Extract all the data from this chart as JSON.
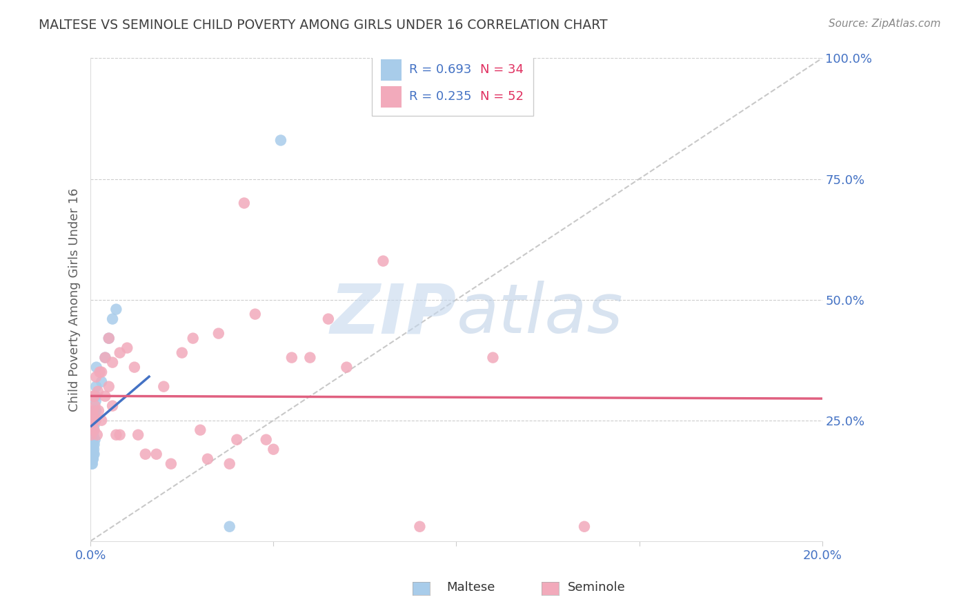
{
  "title": "MALTESE VS SEMINOLE CHILD POVERTY AMONG GIRLS UNDER 16 CORRELATION CHART",
  "source": "Source: ZipAtlas.com",
  "ylabel": "Child Poverty Among Girls Under 16",
  "xlim": [
    0.0,
    0.2
  ],
  "ylim": [
    0.0,
    1.0
  ],
  "maltese_R": 0.693,
  "maltese_N": 34,
  "seminole_R": 0.235,
  "seminole_N": 52,
  "maltese_color": "#A8CCEA",
  "seminole_color": "#F2AABB",
  "maltese_line_color": "#4472C4",
  "seminole_line_color": "#E06080",
  "watermark_zip": "ZIP",
  "watermark_atlas": "atlas",
  "watermark_color": "#C8D8F0",
  "title_color": "#404040",
  "axis_label_color": "#606060",
  "right_axis_color": "#4472C4",
  "grid_color": "#CCCCCC",
  "maltese_x": [
    0.0002,
    0.0003,
    0.0004,
    0.0005,
    0.0005,
    0.0006,
    0.0006,
    0.0006,
    0.0007,
    0.0007,
    0.0008,
    0.0008,
    0.0008,
    0.0009,
    0.0009,
    0.001,
    0.001,
    0.001,
    0.001,
    0.0012,
    0.0012,
    0.0013,
    0.0014,
    0.0014,
    0.0015,
    0.0015,
    0.0016,
    0.003,
    0.004,
    0.005,
    0.006,
    0.007,
    0.038,
    0.052
  ],
  "maltese_y": [
    0.18,
    0.16,
    0.2,
    0.16,
    0.18,
    0.17,
    0.19,
    0.21,
    0.17,
    0.2,
    0.18,
    0.22,
    0.24,
    0.19,
    0.23,
    0.18,
    0.2,
    0.24,
    0.26,
    0.21,
    0.25,
    0.27,
    0.29,
    0.3,
    0.27,
    0.32,
    0.36,
    0.33,
    0.38,
    0.42,
    0.46,
    0.48,
    0.03,
    0.83
  ],
  "seminole_x": [
    0.0002,
    0.0003,
    0.0005,
    0.0006,
    0.0007,
    0.0008,
    0.001,
    0.001,
    0.0012,
    0.0014,
    0.0015,
    0.0018,
    0.002,
    0.0022,
    0.0025,
    0.003,
    0.003,
    0.004,
    0.004,
    0.005,
    0.005,
    0.006,
    0.006,
    0.007,
    0.008,
    0.008,
    0.01,
    0.012,
    0.013,
    0.015,
    0.018,
    0.02,
    0.022,
    0.025,
    0.028,
    0.03,
    0.032,
    0.035,
    0.038,
    0.04,
    0.042,
    0.045,
    0.048,
    0.05,
    0.055,
    0.06,
    0.065,
    0.07,
    0.08,
    0.09,
    0.11,
    0.135
  ],
  "seminole_y": [
    0.22,
    0.25,
    0.24,
    0.27,
    0.26,
    0.3,
    0.23,
    0.3,
    0.28,
    0.25,
    0.34,
    0.22,
    0.31,
    0.27,
    0.35,
    0.25,
    0.35,
    0.3,
    0.38,
    0.32,
    0.42,
    0.28,
    0.37,
    0.22,
    0.39,
    0.22,
    0.4,
    0.36,
    0.22,
    0.18,
    0.18,
    0.32,
    0.16,
    0.39,
    0.42,
    0.23,
    0.17,
    0.43,
    0.16,
    0.21,
    0.7,
    0.47,
    0.21,
    0.19,
    0.38,
    0.38,
    0.46,
    0.36,
    0.58,
    0.03,
    0.38,
    0.03
  ]
}
